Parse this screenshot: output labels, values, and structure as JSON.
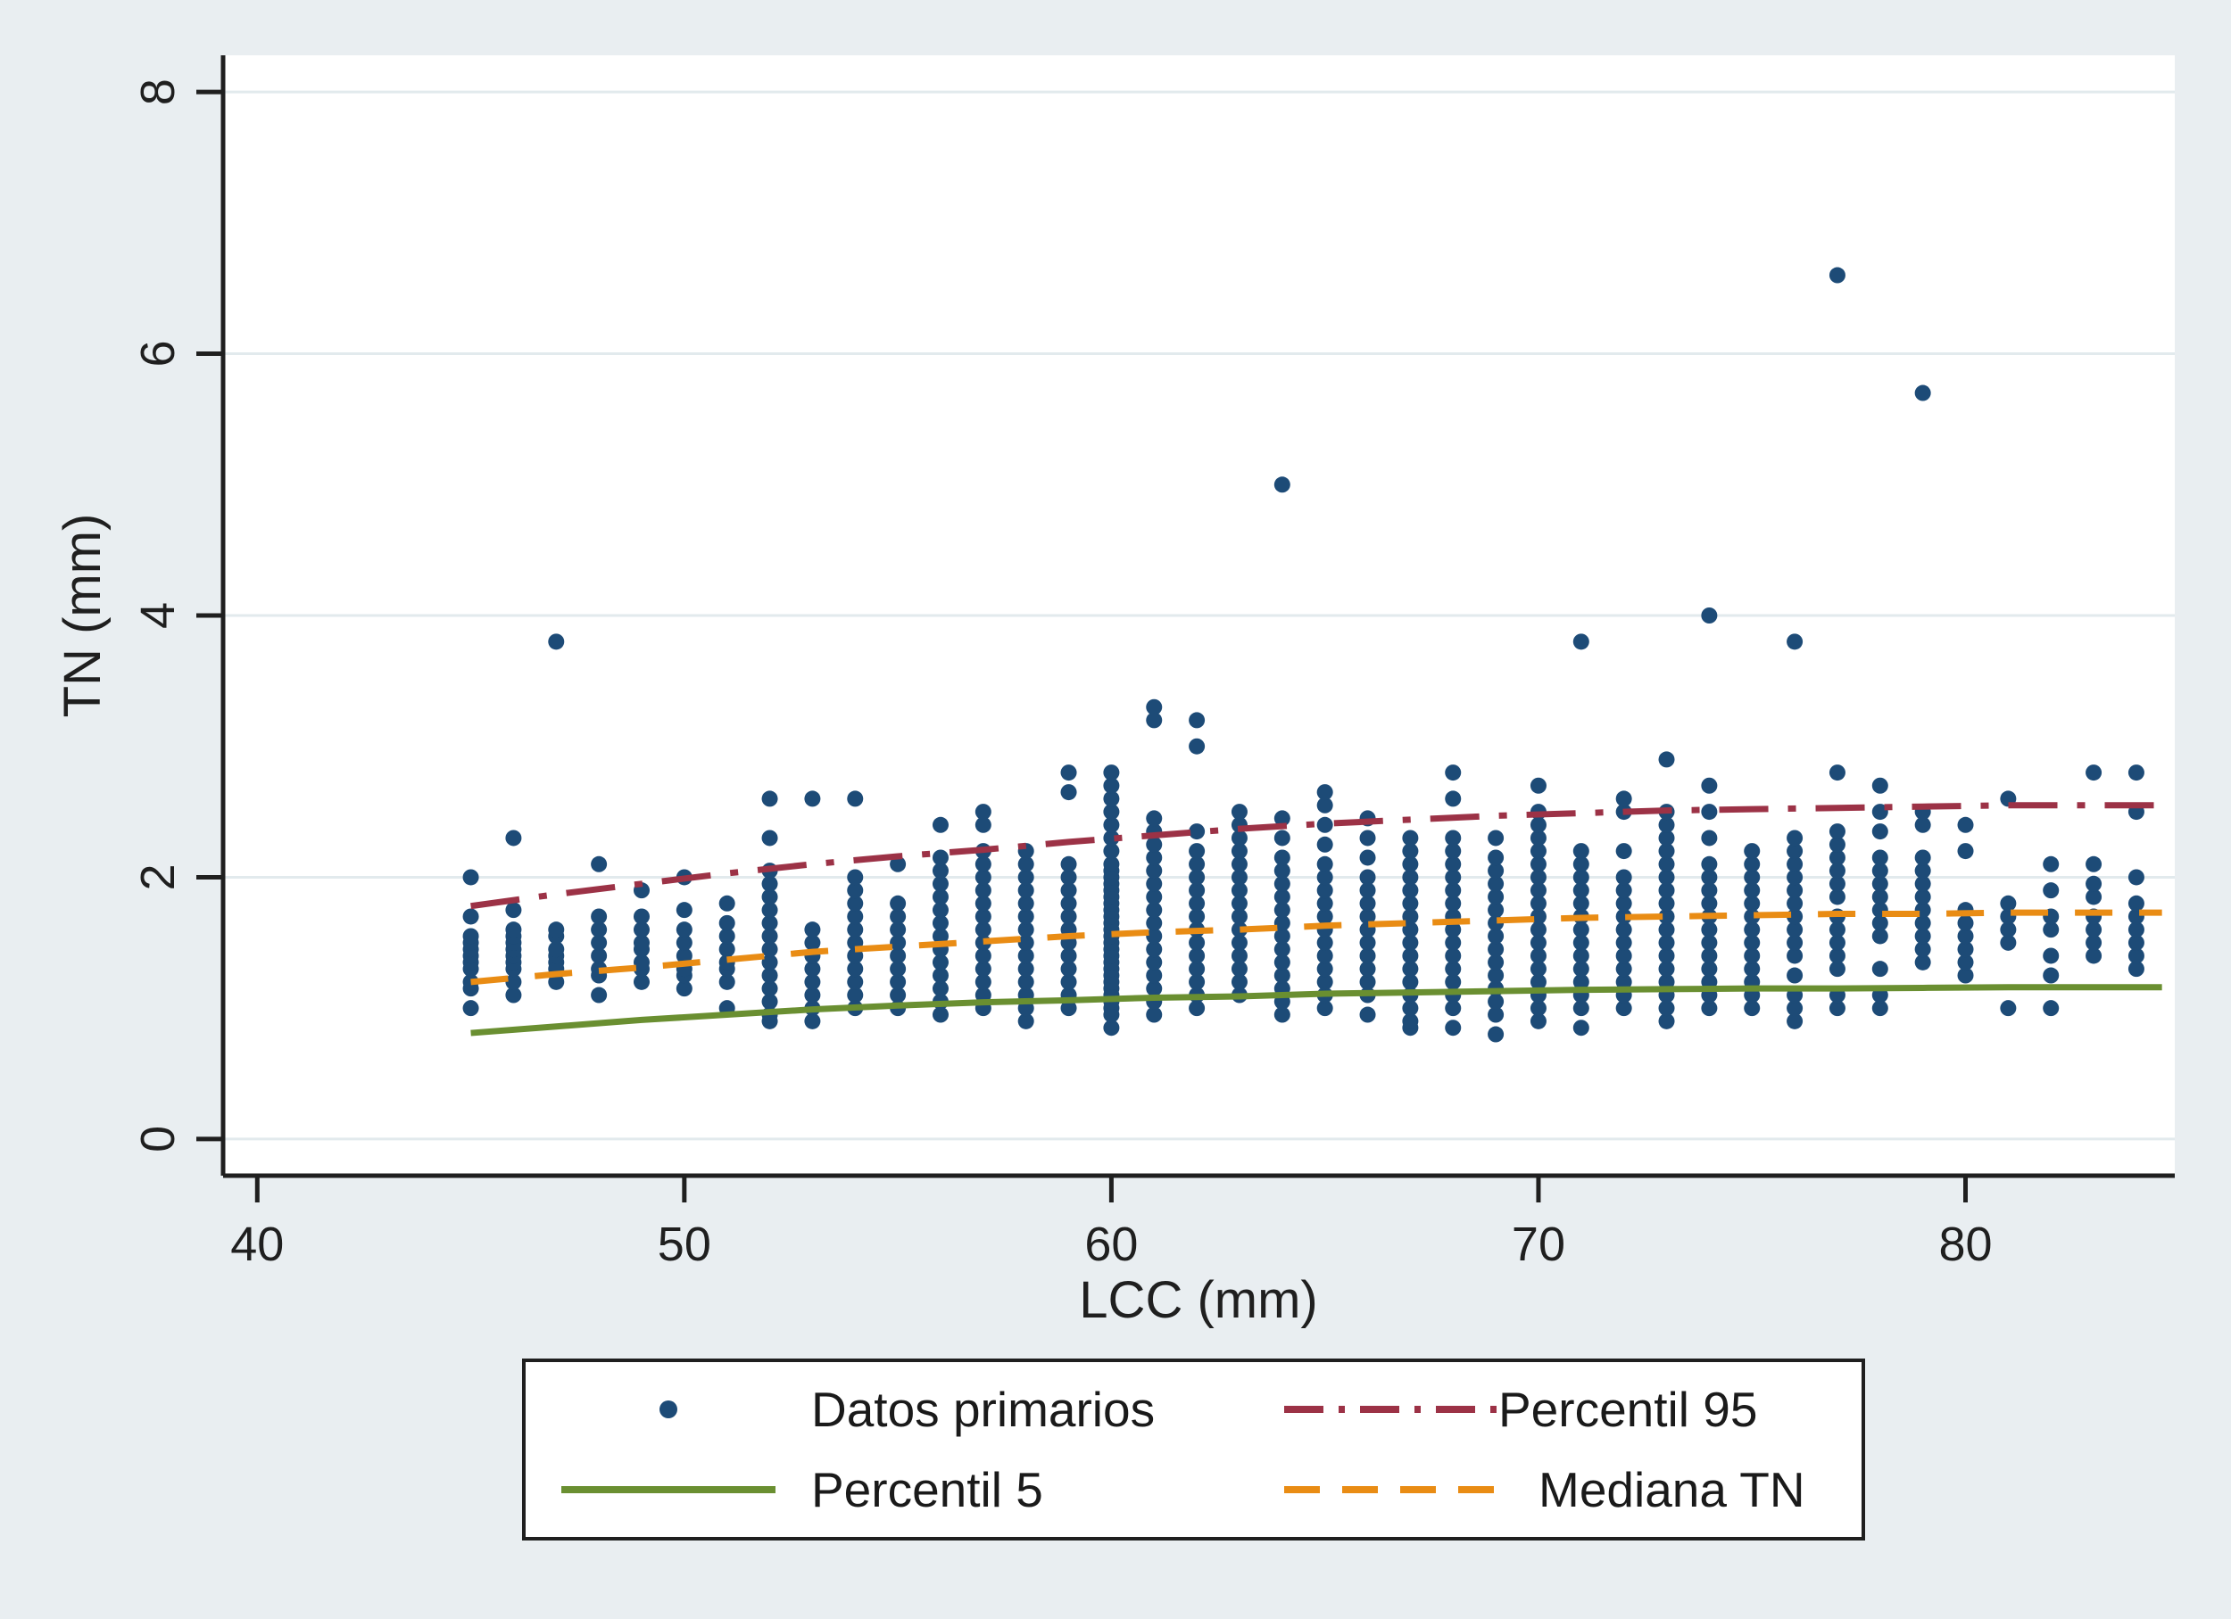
{
  "figure": {
    "background_color": "#e9eef1",
    "plot_background": "#ffffff",
    "grid_color": "#e2eaed",
    "axis_color": "#1f1f1f"
  },
  "chart_data": {
    "type": "scatter",
    "title": "",
    "x_axis": {
      "label": "LCC (mm)",
      "ticks": [
        "40",
        "50",
        "60",
        "70",
        "80"
      ],
      "tick_values": [
        40,
        50,
        60,
        70,
        80
      ],
      "range": [
        39.2,
        84.9
      ]
    },
    "y_axis": {
      "label": "TN (mm)",
      "ticks": [
        "0",
        "2",
        "4",
        "6",
        "8"
      ],
      "tick_values": [
        0,
        2,
        4,
        6,
        8
      ],
      "range": [
        -0.28,
        8.28
      ]
    },
    "grid": "horizontal",
    "legend_position": "bottom",
    "scatter": {
      "name": "Datos primarios",
      "color": "#1d4b77",
      "marker_radius": 9,
      "points_by_x": {
        "45": [
          1.0,
          1.15,
          1.2,
          1.3,
          1.35,
          1.4,
          1.45,
          1.5,
          1.55,
          1.7,
          2.0
        ],
        "46": [
          1.1,
          1.2,
          1.3,
          1.35,
          1.4,
          1.45,
          1.5,
          1.55,
          1.6,
          1.75,
          2.3
        ],
        "47": [
          1.2,
          1.3,
          1.35,
          1.4,
          1.45,
          1.55,
          1.6,
          3.8
        ],
        "48": [
          1.1,
          1.25,
          1.3,
          1.4,
          1.5,
          1.6,
          1.7,
          2.1
        ],
        "49": [
          1.2,
          1.3,
          1.35,
          1.45,
          1.5,
          1.6,
          1.7,
          1.9
        ],
        "50": [
          1.15,
          1.25,
          1.3,
          1.4,
          1.5,
          1.6,
          1.75,
          2.0
        ],
        "51": [
          1.0,
          1.2,
          1.3,
          1.35,
          1.45,
          1.55,
          1.65,
          1.8
        ],
        "52": [
          0.9,
          0.95,
          1.05,
          1.15,
          1.25,
          1.35,
          1.45,
          1.55,
          1.65,
          1.75,
          1.85,
          1.95,
          2.05,
          2.3,
          2.6
        ],
        "53": [
          0.9,
          1.0,
          1.1,
          1.2,
          1.3,
          1.4,
          1.5,
          1.6,
          2.6
        ],
        "54": [
          1.0,
          1.1,
          1.2,
          1.3,
          1.4,
          1.5,
          1.6,
          1.7,
          1.8,
          1.9,
          2.0,
          2.6
        ],
        "55": [
          1.0,
          1.1,
          1.2,
          1.3,
          1.4,
          1.5,
          1.6,
          1.7,
          1.8,
          2.1
        ],
        "56": [
          0.95,
          1.05,
          1.15,
          1.25,
          1.35,
          1.45,
          1.55,
          1.65,
          1.75,
          1.85,
          1.95,
          2.05,
          2.15,
          2.4
        ],
        "57": [
          1.0,
          1.1,
          1.2,
          1.3,
          1.4,
          1.5,
          1.6,
          1.7,
          1.8,
          1.9,
          2.0,
          2.1,
          2.2,
          2.4,
          2.5
        ],
        "58": [
          0.9,
          1.0,
          1.1,
          1.2,
          1.3,
          1.4,
          1.5,
          1.6,
          1.7,
          1.8,
          1.9,
          2.0,
          2.1,
          2.2
        ],
        "59": [
          1.0,
          1.1,
          1.2,
          1.3,
          1.4,
          1.5,
          1.6,
          1.7,
          1.8,
          1.9,
          2.0,
          2.1,
          2.65,
          2.8
        ],
        "60": [
          0.85,
          0.95,
          1.0,
          1.05,
          1.1,
          1.15,
          1.2,
          1.25,
          1.3,
          1.35,
          1.4,
          1.45,
          1.5,
          1.55,
          1.6,
          1.65,
          1.7,
          1.75,
          1.8,
          1.85,
          1.9,
          1.95,
          2.0,
          2.05,
          2.1,
          2.2,
          2.3,
          2.4,
          2.5,
          2.6,
          2.7,
          2.8
        ],
        "61": [
          0.95,
          1.05,
          1.15,
          1.25,
          1.35,
          1.45,
          1.55,
          1.65,
          1.75,
          1.85,
          1.95,
          2.05,
          2.15,
          2.25,
          2.35,
          2.45,
          3.2,
          3.3
        ],
        "62": [
          1.0,
          1.1,
          1.2,
          1.3,
          1.4,
          1.5,
          1.6,
          1.7,
          1.8,
          1.9,
          2.0,
          2.1,
          2.2,
          2.35,
          3.0,
          3.2
        ],
        "63": [
          1.1,
          1.2,
          1.3,
          1.4,
          1.5,
          1.6,
          1.7,
          1.8,
          1.9,
          2.0,
          2.1,
          2.2,
          2.3,
          2.4,
          2.5
        ],
        "64": [
          0.95,
          1.05,
          1.15,
          1.25,
          1.35,
          1.45,
          1.55,
          1.65,
          1.75,
          1.85,
          1.95,
          2.05,
          2.15,
          2.3,
          2.45,
          5.0
        ],
        "65": [
          1.0,
          1.1,
          1.2,
          1.3,
          1.4,
          1.5,
          1.6,
          1.7,
          1.8,
          1.9,
          2.0,
          2.1,
          2.25,
          2.4,
          2.55,
          2.65
        ],
        "66": [
          0.95,
          1.1,
          1.2,
          1.3,
          1.4,
          1.5,
          1.6,
          1.7,
          1.8,
          1.9,
          2.0,
          2.15,
          2.3,
          2.45
        ],
        "67": [
          0.85,
          0.9,
          1.0,
          1.1,
          1.2,
          1.3,
          1.4,
          1.5,
          1.6,
          1.7,
          1.8,
          1.9,
          2.0,
          2.1,
          2.2,
          2.3
        ],
        "68": [
          0.85,
          1.0,
          1.1,
          1.2,
          1.3,
          1.4,
          1.5,
          1.6,
          1.7,
          1.8,
          1.9,
          2.0,
          2.1,
          2.2,
          2.3,
          2.6,
          2.8
        ],
        "69": [
          0.8,
          0.95,
          1.05,
          1.15,
          1.25,
          1.35,
          1.45,
          1.55,
          1.65,
          1.75,
          1.85,
          1.95,
          2.05,
          2.15,
          2.3
        ],
        "70": [
          0.9,
          1.0,
          1.1,
          1.2,
          1.3,
          1.4,
          1.5,
          1.6,
          1.7,
          1.8,
          1.9,
          2.0,
          2.1,
          2.2,
          2.3,
          2.4,
          2.5,
          2.7
        ],
        "71": [
          0.85,
          1.0,
          1.1,
          1.2,
          1.3,
          1.4,
          1.5,
          1.6,
          1.7,
          1.8,
          1.9,
          2.0,
          2.1,
          2.2,
          3.8
        ],
        "72": [
          1.0,
          1.1,
          1.2,
          1.3,
          1.4,
          1.5,
          1.6,
          1.7,
          1.8,
          1.9,
          2.0,
          2.2,
          2.5,
          2.6
        ],
        "73": [
          0.9,
          1.0,
          1.1,
          1.2,
          1.3,
          1.4,
          1.5,
          1.6,
          1.7,
          1.8,
          1.9,
          2.0,
          2.1,
          2.2,
          2.3,
          2.4,
          2.5,
          2.9
        ],
        "74": [
          1.0,
          1.1,
          1.2,
          1.3,
          1.4,
          1.5,
          1.6,
          1.7,
          1.8,
          1.9,
          2.0,
          2.1,
          2.3,
          2.5,
          2.7,
          4.0
        ],
        "75": [
          1.0,
          1.1,
          1.2,
          1.3,
          1.4,
          1.5,
          1.6,
          1.7,
          1.8,
          1.9,
          2.0,
          2.1,
          2.2
        ],
        "76": [
          0.9,
          1.0,
          1.1,
          1.25,
          1.4,
          1.5,
          1.6,
          1.7,
          1.8,
          1.9,
          2.0,
          2.1,
          2.2,
          2.3,
          3.8
        ],
        "77": [
          1.0,
          1.1,
          1.3,
          1.4,
          1.5,
          1.6,
          1.7,
          1.85,
          1.95,
          2.05,
          2.15,
          2.25,
          2.35,
          2.8,
          6.6
        ],
        "78": [
          1.0,
          1.1,
          1.3,
          1.55,
          1.65,
          1.75,
          1.85,
          1.95,
          2.05,
          2.15,
          2.35,
          2.5,
          2.7
        ],
        "79": [
          1.35,
          1.45,
          1.55,
          1.65,
          1.75,
          1.85,
          1.95,
          2.05,
          2.15,
          2.4,
          2.5,
          5.7
        ],
        "80": [
          1.25,
          1.35,
          1.45,
          1.55,
          1.65,
          1.75,
          2.2,
          2.4
        ],
        "81": [
          1.0,
          1.5,
          1.6,
          1.7,
          1.8,
          2.6
        ],
        "82": [
          1.0,
          1.25,
          1.4,
          1.6,
          1.7,
          1.9,
          2.1
        ],
        "83": [
          1.4,
          1.5,
          1.6,
          1.7,
          1.85,
          1.95,
          2.1,
          2.8
        ],
        "84": [
          1.3,
          1.4,
          1.5,
          1.6,
          1.7,
          1.8,
          2.0,
          2.5,
          2.8
        ]
      }
    },
    "lines": [
      {
        "name": "Percentil 5",
        "color": "#6a8f31",
        "style": "solid",
        "width": 7,
        "points": [
          [
            45,
            0.81
          ],
          [
            47,
            0.86
          ],
          [
            49,
            0.91
          ],
          [
            51,
            0.95
          ],
          [
            53,
            0.99
          ],
          [
            55,
            1.02
          ],
          [
            57,
            1.045
          ],
          [
            59,
            1.06
          ],
          [
            61,
            1.08
          ],
          [
            63,
            1.09
          ],
          [
            65,
            1.11
          ],
          [
            67,
            1.12
          ],
          [
            69,
            1.13
          ],
          [
            71,
            1.14
          ],
          [
            73,
            1.145
          ],
          [
            75,
            1.15
          ],
          [
            77,
            1.15
          ],
          [
            79,
            1.155
          ],
          [
            81,
            1.16
          ],
          [
            83,
            1.16
          ],
          [
            84.6,
            1.16
          ]
        ]
      },
      {
        "name": "Mediana TN",
        "color": "#e98c14",
        "style": "dashed",
        "width": 7,
        "points": [
          [
            45,
            1.2
          ],
          [
            47,
            1.26
          ],
          [
            49,
            1.31
          ],
          [
            51,
            1.37
          ],
          [
            53,
            1.43
          ],
          [
            55,
            1.47
          ],
          [
            57,
            1.51
          ],
          [
            59,
            1.55
          ],
          [
            61,
            1.58
          ],
          [
            63,
            1.6
          ],
          [
            65,
            1.63
          ],
          [
            67,
            1.65
          ],
          [
            69,
            1.67
          ],
          [
            71,
            1.69
          ],
          [
            73,
            1.7
          ],
          [
            75,
            1.71
          ],
          [
            77,
            1.72
          ],
          [
            79,
            1.72
          ],
          [
            81,
            1.73
          ],
          [
            83,
            1.73
          ],
          [
            84.6,
            1.73
          ]
        ]
      },
      {
        "name": "Percentil 95",
        "color": "#9c3246",
        "style": "dash-dot",
        "width": 7,
        "points": [
          [
            45,
            1.78
          ],
          [
            47,
            1.87
          ],
          [
            49,
            1.95
          ],
          [
            51,
            2.03
          ],
          [
            53,
            2.1
          ],
          [
            55,
            2.16
          ],
          [
            57,
            2.21
          ],
          [
            59,
            2.27
          ],
          [
            61,
            2.32
          ],
          [
            63,
            2.37
          ],
          [
            65,
            2.41
          ],
          [
            67,
            2.44
          ],
          [
            69,
            2.47
          ],
          [
            71,
            2.49
          ],
          [
            73,
            2.51
          ],
          [
            75,
            2.52
          ],
          [
            77,
            2.53
          ],
          [
            79,
            2.54
          ],
          [
            81,
            2.55
          ],
          [
            83,
            2.55
          ],
          [
            84.6,
            2.55
          ]
        ]
      }
    ]
  },
  "legend": {
    "items": [
      {
        "label": "Datos primarios",
        "marker": "dot",
        "color": "#1d4b77"
      },
      {
        "label": "Percentil 95",
        "marker": "dash-dot-line",
        "color": "#9c3246"
      },
      {
        "label": "Percentil 5",
        "marker": "solid-line",
        "color": "#6a8f31"
      },
      {
        "label": "Mediana TN",
        "marker": "dashed-line",
        "color": "#e98c14"
      }
    ]
  }
}
